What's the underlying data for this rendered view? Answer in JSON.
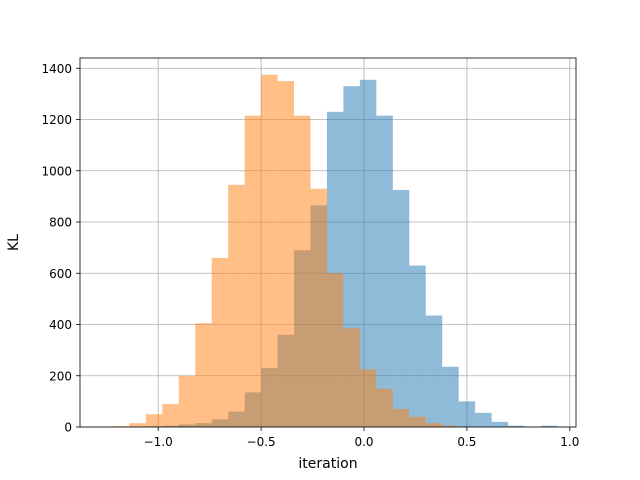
{
  "chart_data": {
    "type": "bar",
    "subtype": "overlapping-histogram",
    "title": "",
    "xlabel": "iteration",
    "ylabel": "KL",
    "xlim": [
      -1.38,
      1.03
    ],
    "ylim": [
      0,
      1440
    ],
    "xticks": [
      -1.0,
      -0.5,
      0.0,
      0.5,
      1.0
    ],
    "xtick_labels": [
      "−1.0",
      "−0.5",
      "0.0",
      "0.5",
      "1.0"
    ],
    "yticks": [
      0,
      200,
      400,
      600,
      800,
      1000,
      1200,
      1400
    ],
    "ytick_labels": [
      "0",
      "200",
      "400",
      "600",
      "800",
      "1000",
      "1200",
      "1400"
    ],
    "grid": true,
    "bin_edges": [
      -1.3,
      -1.22,
      -1.14,
      -1.06,
      -0.98,
      -0.9,
      -0.82,
      -0.74,
      -0.66,
      -0.58,
      -0.5,
      -0.42,
      -0.34,
      -0.26,
      -0.18,
      -0.1,
      -0.02,
      0.06,
      0.14,
      0.22,
      0.3,
      0.38,
      0.46,
      0.54,
      0.62,
      0.7,
      0.78,
      0.86,
      0.94
    ],
    "series": [
      {
        "color": "#1f77b4",
        "alpha": 0.5,
        "values": [
          0,
          0,
          0,
          3,
          5,
          10,
          15,
          30,
          60,
          135,
          230,
          360,
          690,
          865,
          1230,
          1330,
          1355,
          1215,
          925,
          630,
          435,
          235,
          100,
          55,
          20,
          5,
          1,
          5
        ]
      },
      {
        "color": "#ff7f0e",
        "alpha": 0.5,
        "values": [
          2,
          3,
          15,
          50,
          90,
          200,
          405,
          660,
          945,
          1215,
          1375,
          1350,
          1215,
          930,
          600,
          385,
          225,
          150,
          70,
          40,
          15,
          5,
          2,
          0,
          0,
          0,
          0,
          0
        ]
      }
    ]
  }
}
